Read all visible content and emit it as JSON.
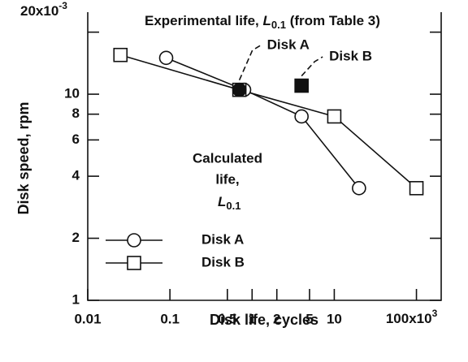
{
  "chart_data": {
    "type": "line",
    "xlabel": "Disk life, cycles",
    "ylabel": "Disk speed, rpm",
    "xscale": "log",
    "yscale": "log",
    "xlim": [
      0.01,
      200
    ],
    "ylim": [
      1,
      25
    ],
    "xticks": [
      0.01,
      0.1,
      0.5,
      1,
      2,
      5,
      10,
      {
        "value": 100,
        "label": "100x10",
        "exponent": "3"
      }
    ],
    "yticks": [
      1,
      2,
      4,
      6,
      8,
      10,
      {
        "value": 20,
        "label": "20x10",
        "exponent": "-3"
      }
    ],
    "series": [
      {
        "name": "Disk A",
        "marker": "circle",
        "color": "#111",
        "x": [
          0.09,
          0.8,
          4,
          20
        ],
        "values": [
          15,
          10.5,
          7.8,
          3.5
        ]
      },
      {
        "name": "Disk B",
        "marker": "square",
        "color": "#111",
        "x": [
          0.025,
          0.7,
          10,
          100
        ],
        "values": [
          15.5,
          10.5,
          7.8,
          3.5
        ]
      }
    ],
    "experimental": [
      {
        "name": "Disk A",
        "marker": "circle",
        "color": "#111",
        "x": [
          0.7
        ],
        "values": [
          10.5
        ]
      },
      {
        "name": "Disk B",
        "marker": "square",
        "color": "#111",
        "x": [
          4
        ],
        "values": [
          11
        ]
      }
    ],
    "experimental_label": {
      "text": "Experimental life,",
      "symbol": "L",
      "subscript": "0.1",
      "suffix": "(from Table 3)"
    },
    "calculated_label": {
      "lines": [
        "Calculated",
        "life,"
      ],
      "symbol": "L",
      "subscript": "0.1"
    }
  }
}
